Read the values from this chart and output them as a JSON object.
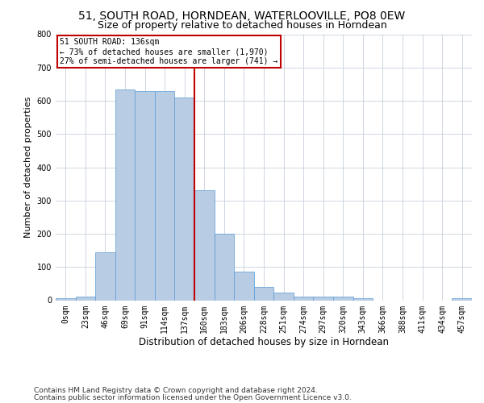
{
  "title1": "51, SOUTH ROAD, HORNDEAN, WATERLOOVILLE, PO8 0EW",
  "title2": "Size of property relative to detached houses in Horndean",
  "xlabel": "Distribution of detached houses by size in Horndean",
  "ylabel": "Number of detached properties",
  "footnote1": "Contains HM Land Registry data © Crown copyright and database right 2024.",
  "footnote2": "Contains public sector information licensed under the Open Government Licence v3.0.",
  "bin_labels": [
    "0sqm",
    "23sqm",
    "46sqm",
    "69sqm",
    "91sqm",
    "114sqm",
    "137sqm",
    "160sqm",
    "183sqm",
    "206sqm",
    "228sqm",
    "251sqm",
    "274sqm",
    "297sqm",
    "320sqm",
    "343sqm",
    "366sqm",
    "388sqm",
    "411sqm",
    "434sqm",
    "457sqm"
  ],
  "bar_values": [
    5,
    10,
    145,
    635,
    630,
    630,
    610,
    330,
    200,
    85,
    40,
    22,
    10,
    10,
    10,
    5,
    0,
    0,
    0,
    0,
    5
  ],
  "bar_color": "#b8cce4",
  "bar_edge_color": "#5b9bd5",
  "red_line_index": 6,
  "red_line_color": "#c00000",
  "annotation_title": "51 SOUTH ROAD: 136sqm",
  "annotation_line1": "← 73% of detached houses are smaller (1,970)",
  "annotation_line2": "27% of semi-detached houses are larger (741) →",
  "annotation_box_color": "#ffffff",
  "annotation_box_edge": "#c00000",
  "ylim": [
    0,
    800
  ],
  "yticks": [
    0,
    100,
    200,
    300,
    400,
    500,
    600,
    700,
    800
  ],
  "bg_color": "#ffffff",
  "grid_color": "#c8d0dc",
  "title1_fontsize": 10,
  "title2_fontsize": 9,
  "xlabel_fontsize": 8.5,
  "ylabel_fontsize": 8,
  "tick_fontsize": 7,
  "footnote_fontsize": 6.5
}
